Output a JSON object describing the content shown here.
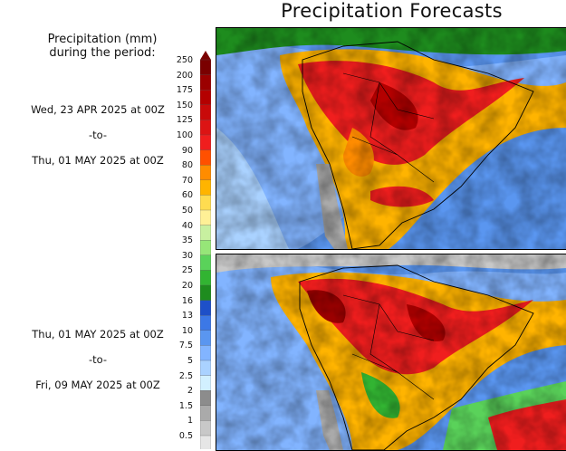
{
  "title": "Precipitation Forecasts",
  "legend_title_line1": "Precipitation (mm)",
  "legend_title_line2": "during the period:",
  "period1": {
    "start": "Wed, 23 APR 2025 at 00Z",
    "sep": "-to-",
    "end": "Thu, 01 MAY 2025 at 00Z"
  },
  "period2": {
    "start": "Thu, 01 MAY 2025 at 00Z",
    "sep": "-to-",
    "end": "Fri, 09 MAY 2025 at 00Z"
  },
  "scale": {
    "levels": [
      "250",
      "200",
      "175",
      "150",
      "125",
      "100",
      "90",
      "80",
      "70",
      "60",
      "50",
      "40",
      "35",
      "30",
      "25",
      "20",
      "16",
      "13",
      "10",
      "7.5",
      "5",
      "2.5",
      "2",
      "1.5",
      "1",
      "0.5"
    ],
    "colors": [
      "#7a0000",
      "#9b0000",
      "#b40000",
      "#c80a0a",
      "#dc1414",
      "#f01e1e",
      "#ff5000",
      "#ff8c00",
      "#ffb400",
      "#ffdc50",
      "#fff096",
      "#c8f0a0",
      "#96e678",
      "#5ad25a",
      "#32b432",
      "#1e8c1e",
      "#1e50c8",
      "#3c78e6",
      "#5a96f0",
      "#82b4ff",
      "#aad2ff",
      "#d2f0ff",
      "#8c8c8c",
      "#aaaaaa",
      "#c8c8c8",
      "#e6e6e6"
    ]
  }
}
